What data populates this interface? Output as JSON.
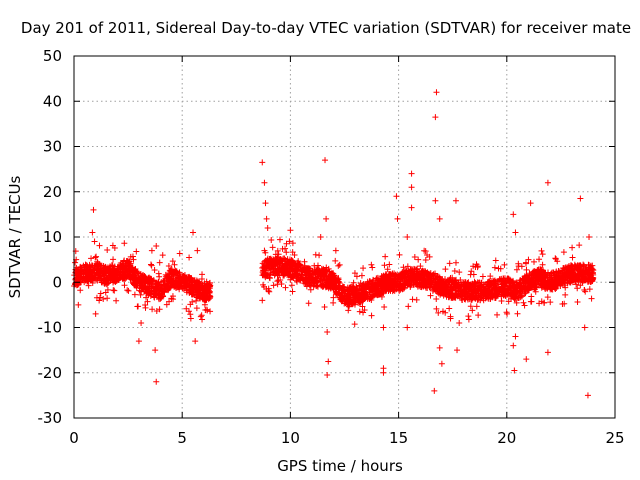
{
  "chart_data": {
    "type": "scatter",
    "title": "Day 201 of 2011, Sidereal Day-to-day VTEC variation (SDTVAR) for receiver mate",
    "xlabel": "GPS time / hours",
    "ylabel": "SDTVAR / TECUs",
    "xlim": [
      0,
      25
    ],
    "ylim": [
      -30,
      50
    ],
    "xticks": [
      "0",
      "5",
      "10",
      "15",
      "20",
      "25"
    ],
    "yticks": [
      "-30",
      "-20",
      "-10",
      "0",
      "10",
      "20",
      "30",
      "40",
      "50"
    ],
    "grid": true,
    "marker": "+",
    "color": "#ff0000",
    "series": [
      {
        "name": "SDTVAR",
        "segments": [
          {
            "x_start": 0.0,
            "x_end": 6.3,
            "center": [
              [
                0,
                1
              ],
              [
                0.5,
                2
              ],
              [
                1,
                2.5
              ],
              [
                1.5,
                1.5
              ],
              [
                2,
                2
              ],
              [
                2.5,
                3
              ],
              [
                3,
                0
              ],
              [
                3.5,
                -1
              ],
              [
                4,
                -2
              ],
              [
                4.5,
                1
              ],
              [
                5,
                0
              ],
              [
                5.5,
                -1
              ],
              [
                6,
                -2
              ],
              [
                6.3,
                -2
              ]
            ],
            "spread": 4
          },
          {
            "x_start": 8.7,
            "x_end": 24.0,
            "center": [
              [
                8.7,
                3
              ],
              [
                9.5,
                3.5
              ],
              [
                10,
                3
              ],
              [
                10.5,
                2
              ],
              [
                11,
                1
              ],
              [
                11.5,
                1
              ],
              [
                12,
                0
              ],
              [
                12.5,
                -3
              ],
              [
                13,
                -3
              ],
              [
                13.5,
                -2
              ],
              [
                14,
                -1
              ],
              [
                14.5,
                0
              ],
              [
                15,
                0
              ],
              [
                15.5,
                1
              ],
              [
                16,
                1
              ],
              [
                16.5,
                0
              ],
              [
                17,
                -1
              ],
              [
                18,
                -2
              ],
              [
                19,
                -2
              ],
              [
                20,
                -1
              ],
              [
                20.5,
                -2
              ],
              [
                21,
                0
              ],
              [
                21.5,
                1
              ],
              [
                22,
                0
              ],
              [
                22.5,
                1
              ],
              [
                23,
                2
              ],
              [
                23.5,
                2
              ],
              [
                24,
                2
              ]
            ],
            "spread": 4
          }
        ],
        "outliers": [
          {
            "x": 0.1,
            "y": 5
          },
          {
            "x": 0.2,
            "y": -5
          },
          {
            "x": 0.9,
            "y": 16
          },
          {
            "x": 0.85,
            "y": 11
          },
          {
            "x": 0.95,
            "y": 9
          },
          {
            "x": 1.0,
            "y": -7
          },
          {
            "x": 3.0,
            "y": -13
          },
          {
            "x": 3.1,
            "y": -9
          },
          {
            "x": 3.6,
            "y": 7
          },
          {
            "x": 3.8,
            "y": 8
          },
          {
            "x": 3.75,
            "y": -15
          },
          {
            "x": 3.8,
            "y": -22
          },
          {
            "x": 4.1,
            "y": 6
          },
          {
            "x": 5.4,
            "y": -8
          },
          {
            "x": 5.5,
            "y": 11
          },
          {
            "x": 5.6,
            "y": -13
          },
          {
            "x": 5.7,
            "y": 7
          },
          {
            "x": 8.7,
            "y": 26.5
          },
          {
            "x": 8.8,
            "y": 22
          },
          {
            "x": 8.85,
            "y": 17.5
          },
          {
            "x": 8.9,
            "y": 14
          },
          {
            "x": 8.95,
            "y": 12
          },
          {
            "x": 8.8,
            "y": 7
          },
          {
            "x": 8.7,
            "y": -4
          },
          {
            "x": 10.0,
            "y": 11.5
          },
          {
            "x": 11.4,
            "y": 10
          },
          {
            "x": 11.6,
            "y": 27
          },
          {
            "x": 11.65,
            "y": 14
          },
          {
            "x": 11.7,
            "y": -11
          },
          {
            "x": 11.75,
            "y": -17.5
          },
          {
            "x": 11.7,
            "y": -20.5
          },
          {
            "x": 12.1,
            "y": 7
          },
          {
            "x": 14.3,
            "y": -19
          },
          {
            "x": 14.3,
            "y": -20
          },
          {
            "x": 14.3,
            "y": -10
          },
          {
            "x": 14.9,
            "y": 19
          },
          {
            "x": 14.95,
            "y": 14
          },
          {
            "x": 15.6,
            "y": 24
          },
          {
            "x": 15.6,
            "y": 21
          },
          {
            "x": 15.6,
            "y": 16.5
          },
          {
            "x": 15.4,
            "y": 10
          },
          {
            "x": 15.4,
            "y": -10
          },
          {
            "x": 16.75,
            "y": 42
          },
          {
            "x": 16.7,
            "y": 36.5
          },
          {
            "x": 16.7,
            "y": 18
          },
          {
            "x": 16.9,
            "y": 14
          },
          {
            "x": 16.65,
            "y": -24
          },
          {
            "x": 16.9,
            "y": -14.5
          },
          {
            "x": 17.0,
            "y": -18
          },
          {
            "x": 17.4,
            "y": -8
          },
          {
            "x": 17.65,
            "y": 18
          },
          {
            "x": 17.7,
            "y": -15
          },
          {
            "x": 17.8,
            "y": -9
          },
          {
            "x": 20.3,
            "y": 15
          },
          {
            "x": 20.4,
            "y": 11
          },
          {
            "x": 20.3,
            "y": -14
          },
          {
            "x": 20.35,
            "y": -19.5
          },
          {
            "x": 20.4,
            "y": -12
          },
          {
            "x": 20.9,
            "y": -17
          },
          {
            "x": 21.1,
            "y": 17.5
          },
          {
            "x": 21.9,
            "y": 22
          },
          {
            "x": 21.9,
            "y": -15.5
          },
          {
            "x": 23.4,
            "y": 18.5
          },
          {
            "x": 23.6,
            "y": -10
          },
          {
            "x": 23.75,
            "y": -25
          },
          {
            "x": 23.8,
            "y": 10
          }
        ]
      }
    ]
  }
}
